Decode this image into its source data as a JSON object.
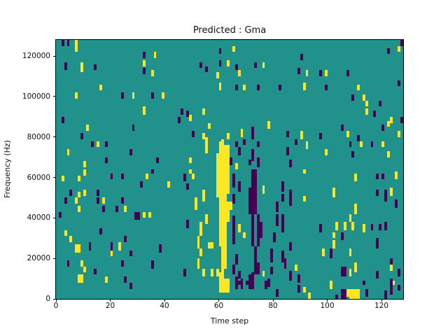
{
  "title": "Predicted : Gma",
  "xlabel": "Time step",
  "ylabel": "Frequency (Hz)",
  "chart_data": {
    "type": "heatmap",
    "title": "Predicted : Gma",
    "xlabel": "Time step",
    "ylabel": "Frequency (Hz)",
    "x_range": [
      0,
      128
    ],
    "y_range": [
      0,
      128000
    ],
    "x_ticks": [
      0,
      20,
      40,
      60,
      80,
      100,
      120
    ],
    "y_ticks": [
      0,
      20000,
      40000,
      60000,
      80000,
      100000,
      120000
    ],
    "grid": false,
    "legend": "none",
    "colormap": "viridis",
    "colors": {
      "background": "#21918c",
      "low": "#440154",
      "high": "#fde725",
      "spine": "#000000"
    },
    "cell_unit": {
      "x": 1,
      "y": 1000
    },
    "purple_cells": [
      [
        2,
        125,
        3
      ],
      [
        4,
        125,
        3
      ],
      [
        3,
        113,
        4
      ],
      [
        14,
        113,
        3
      ],
      [
        24,
        99,
        3
      ],
      [
        2,
        87,
        3
      ],
      [
        28,
        83,
        3
      ],
      [
        9,
        79,
        3
      ],
      [
        13,
        75,
        3
      ],
      [
        18,
        75,
        3
      ],
      [
        27,
        71,
        3
      ],
      [
        18,
        67,
        3
      ],
      [
        20,
        59,
        3
      ],
      [
        24,
        59,
        3
      ],
      [
        31,
        55,
        3
      ],
      [
        5,
        51,
        3
      ],
      [
        15,
        51,
        3
      ],
      [
        3,
        47,
        3
      ],
      [
        15,
        47,
        3
      ],
      [
        24,
        47,
        3
      ],
      [
        17,
        43,
        3
      ],
      [
        22,
        43,
        3
      ],
      [
        1,
        40,
        3
      ],
      [
        29,
        39,
        4,
        2
      ],
      [
        16,
        32,
        3
      ],
      [
        25,
        28,
        3
      ],
      [
        12,
        24,
        4
      ],
      [
        20,
        24,
        4
      ],
      [
        27,
        21,
        3
      ],
      [
        4,
        16,
        3
      ],
      [
        24,
        16,
        3
      ],
      [
        14,
        12,
        3
      ],
      [
        25,
        8,
        3
      ],
      [
        27,
        5,
        3
      ],
      [
        60,
        121,
        3
      ],
      [
        32,
        119,
        3
      ],
      [
        53,
        114,
        3
      ],
      [
        60,
        115,
        3
      ],
      [
        32,
        111,
        3
      ],
      [
        55,
        112,
        3
      ],
      [
        35,
        99,
        3
      ],
      [
        46,
        91,
        3
      ],
      [
        48,
        90,
        3
      ],
      [
        45,
        87,
        3
      ],
      [
        50,
        80,
        3
      ],
      [
        37,
        67,
        3
      ],
      [
        35,
        62,
        2
      ],
      [
        47,
        58,
        4
      ],
      [
        48,
        54,
        3
      ],
      [
        48,
        35,
        4
      ],
      [
        38,
        23,
        4
      ],
      [
        35,
        15,
        4
      ],
      [
        47,
        11,
        4
      ],
      [
        90,
        118,
        3
      ],
      [
        66,
        113,
        3
      ],
      [
        73,
        114,
        3
      ],
      [
        89,
        111,
        3
      ],
      [
        66,
        103,
        3
      ],
      [
        74,
        103,
        3
      ],
      [
        82,
        103,
        3
      ],
      [
        72,
        79,
        6
      ],
      [
        85,
        80,
        3
      ],
      [
        69,
        76,
        3
      ],
      [
        66,
        75,
        3
      ],
      [
        74,
        75,
        3
      ],
      [
        88,
        76,
        3
      ],
      [
        67,
        71,
        4
      ],
      [
        72,
        68,
        6
      ],
      [
        85,
        71,
        4
      ],
      [
        64,
        66,
        4
      ],
      [
        71,
        66,
        3
      ],
      [
        74,
        65,
        5
      ],
      [
        86,
        65,
        4
      ],
      [
        65,
        55,
        7
      ],
      [
        65,
        47,
        5
      ],
      [
        65,
        27,
        14
      ],
      [
        65,
        12,
        5
      ],
      [
        66,
        17,
        5
      ],
      [
        66,
        5,
        6
      ],
      [
        67,
        53,
        5
      ],
      [
        67,
        10,
        4
      ],
      [
        68,
        5,
        5
      ],
      [
        71,
        42,
        13
      ],
      [
        71,
        5,
        7
      ],
      [
        72,
        55,
        9
      ],
      [
        72,
        26,
        29
      ],
      [
        72,
        5,
        8
      ],
      [
        73,
        42,
        22
      ],
      [
        73,
        12,
        14
      ],
      [
        74,
        26,
        16
      ],
      [
        74,
        12,
        6
      ],
      [
        75,
        30,
        8
      ],
      [
        78,
        6,
        4
      ],
      [
        79,
        18,
        7
      ],
      [
        79,
        12,
        4
      ],
      [
        80,
        28,
        5
      ],
      [
        81,
        36,
        6
      ],
      [
        81,
        43,
        5
      ],
      [
        81,
        1,
        4
      ],
      [
        83,
        53,
        5
      ],
      [
        83,
        48,
        4
      ],
      [
        83,
        33,
        9
      ],
      [
        83,
        18,
        6
      ],
      [
        84,
        15,
        5
      ],
      [
        86,
        50,
        4
      ],
      [
        86,
        46,
        4
      ],
      [
        86,
        24,
        4
      ],
      [
        86,
        9,
        5
      ],
      [
        89,
        8,
        4
      ],
      [
        89,
        3,
        4
      ],
      [
        67,
        7,
        2
      ],
      [
        70,
        7,
        2,
        2
      ],
      [
        77,
        5,
        4
      ],
      [
        127,
        125,
        3
      ],
      [
        122,
        121,
        3
      ],
      [
        97,
        110,
        3
      ],
      [
        107,
        110,
        3
      ],
      [
        126,
        105,
        3
      ],
      [
        99,
        103,
        3
      ],
      [
        109,
        98,
        3
      ],
      [
        119,
        95,
        3
      ],
      [
        117,
        90,
        3
      ],
      [
        127,
        87,
        3
      ],
      [
        105,
        83,
        3
      ],
      [
        120,
        83,
        3
      ],
      [
        97,
        79,
        3
      ],
      [
        111,
        78,
        3
      ],
      [
        108,
        75,
        3
      ],
      [
        116,
        75,
        3
      ],
      [
        109,
        70,
        3
      ],
      [
        118,
        59,
        3
      ],
      [
        120,
        59,
        3
      ],
      [
        118,
        51,
        3
      ],
      [
        121,
        51,
        3
      ],
      [
        121,
        48,
        3
      ],
      [
        125,
        45,
        4
      ],
      [
        97,
        33,
        4
      ],
      [
        116,
        34,
        3
      ],
      [
        119,
        34,
        3
      ],
      [
        121,
        34,
        4
      ],
      [
        105,
        29,
        4
      ],
      [
        118,
        25,
        5
      ],
      [
        101,
        20,
        5
      ],
      [
        123,
        16,
        4
      ],
      [
        126,
        11,
        4
      ],
      [
        105,
        11,
        5,
        2
      ],
      [
        118,
        10,
        4
      ],
      [
        123,
        6,
        4
      ],
      [
        114,
        1,
        4
      ],
      [
        123,
        2,
        4
      ],
      [
        103,
        0,
        2
      ],
      [
        105,
        0,
        5,
        2
      ],
      [
        121,
        0,
        4
      ],
      [
        113,
        7,
        2
      ],
      [
        126,
        4,
        3
      ]
    ],
    "yellow_cells": [
      [
        7,
        122,
        6
      ],
      [
        9,
        112,
        5
      ],
      [
        16,
        103,
        3
      ],
      [
        7,
        99,
        3
      ],
      [
        28,
        99,
        3
      ],
      [
        11,
        83,
        3
      ],
      [
        15,
        75,
        3
      ],
      [
        4,
        71,
        3
      ],
      [
        10,
        65,
        3
      ],
      [
        10,
        61,
        3
      ],
      [
        2,
        58,
        3
      ],
      [
        8,
        58,
        3
      ],
      [
        8,
        50,
        3
      ],
      [
        10,
        51,
        3
      ],
      [
        7,
        47,
        3
      ],
      [
        17,
        47,
        3
      ],
      [
        8,
        43,
        3
      ],
      [
        25,
        43,
        3
      ],
      [
        3,
        31,
        3
      ],
      [
        5,
        28,
        3
      ],
      [
        7,
        23,
        4,
        2
      ],
      [
        23,
        24,
        4
      ],
      [
        20,
        21,
        3
      ],
      [
        9,
        16,
        3
      ],
      [
        10,
        13,
        3
      ],
      [
        8,
        8,
        4,
        2
      ],
      [
        18,
        8,
        3
      ],
      [
        36,
        119,
        3
      ],
      [
        32,
        115,
        3
      ],
      [
        63,
        115,
        3
      ],
      [
        35,
        110,
        3
      ],
      [
        59,
        109,
        3
      ],
      [
        60,
        103,
        4
      ],
      [
        39,
        99,
        3
      ],
      [
        32,
        91,
        4
      ],
      [
        54,
        91,
        3
      ],
      [
        49,
        88,
        3
      ],
      [
        56,
        84,
        3
      ],
      [
        54,
        79,
        3
      ],
      [
        63,
        79,
        3
      ],
      [
        55,
        76,
        4
      ],
      [
        61,
        76,
        3
      ],
      [
        55,
        72,
        4
      ],
      [
        49,
        67,
        3
      ],
      [
        49,
        62,
        2
      ],
      [
        33,
        59,
        3
      ],
      [
        50,
        59,
        3
      ],
      [
        41,
        55,
        3
      ],
      [
        54,
        48,
        6
      ],
      [
        51,
        44,
        6
      ],
      [
        32,
        40,
        3
      ],
      [
        34,
        40,
        3
      ],
      [
        55,
        37,
        5
      ],
      [
        53,
        31,
        7
      ],
      [
        52,
        25,
        6
      ],
      [
        56,
        25,
        3,
        2
      ],
      [
        53,
        21,
        4
      ],
      [
        52,
        15,
        5
      ],
      [
        57,
        11,
        4
      ],
      [
        54,
        11,
        4
      ],
      [
        59,
        50,
        22
      ],
      [
        60,
        48,
        30
      ],
      [
        61,
        44,
        34
      ],
      [
        62,
        48,
        28
      ],
      [
        63,
        52,
        24
      ],
      [
        60,
        26,
        22
      ],
      [
        61,
        3,
        41
      ],
      [
        62,
        15,
        33
      ],
      [
        59,
        11,
        4
      ],
      [
        60,
        3,
        10
      ],
      [
        62,
        3,
        7
      ],
      [
        63,
        38,
        10
      ],
      [
        63,
        3,
        7
      ],
      [
        64,
        44,
        4
      ],
      [
        65,
        122,
        3
      ],
      [
        76,
        114,
        3
      ],
      [
        92,
        110,
        3
      ],
      [
        67,
        110,
        3
      ],
      [
        69,
        103,
        3
      ],
      [
        91,
        103,
        4
      ],
      [
        78,
        84,
        4
      ],
      [
        68,
        80,
        4
      ],
      [
        90,
        79,
        4
      ],
      [
        92,
        74,
        4
      ],
      [
        66,
        64,
        3
      ],
      [
        76,
        52,
        4
      ],
      [
        91,
        62,
        2
      ],
      [
        91,
        48,
        3
      ],
      [
        64,
        44,
        4
      ],
      [
        67,
        33,
        4
      ],
      [
        69,
        30,
        3
      ],
      [
        88,
        14,
        3
      ],
      [
        76,
        11,
        3
      ],
      [
        91,
        3,
        3
      ],
      [
        93,
        0,
        3
      ],
      [
        126,
        122,
        3
      ],
      [
        99,
        110,
        3
      ],
      [
        111,
        103,
        3
      ],
      [
        113,
        98,
        3
      ],
      [
        114,
        95,
        3
      ],
      [
        114,
        91,
        3
      ],
      [
        123,
        87,
        3
      ],
      [
        122,
        85,
        3
      ],
      [
        107,
        80,
        3
      ],
      [
        126,
        80,
        3
      ],
      [
        112,
        75,
        3
      ],
      [
        120,
        75,
        3
      ],
      [
        99,
        71,
        3
      ],
      [
        122,
        70,
        3
      ],
      [
        110,
        58,
        4
      ],
      [
        125,
        59,
        4
      ],
      [
        102,
        50,
        5
      ],
      [
        123,
        51,
        4
      ],
      [
        110,
        42,
        5
      ],
      [
        108,
        38,
        4
      ],
      [
        109,
        34,
        4
      ],
      [
        103,
        34,
        4
      ],
      [
        106,
        34,
        4
      ],
      [
        113,
        33,
        4
      ],
      [
        102,
        30,
        3
      ],
      [
        102,
        25,
        4
      ],
      [
        98,
        21,
        4
      ],
      [
        108,
        21,
        4
      ],
      [
        110,
        13,
        5
      ],
      [
        108,
        11,
        4
      ],
      [
        101,
        5,
        4
      ],
      [
        107,
        1,
        4
      ],
      [
        123,
        14,
        3
      ],
      [
        108,
        0,
        5,
        4
      ],
      [
        124,
        7,
        2
      ]
    ]
  }
}
